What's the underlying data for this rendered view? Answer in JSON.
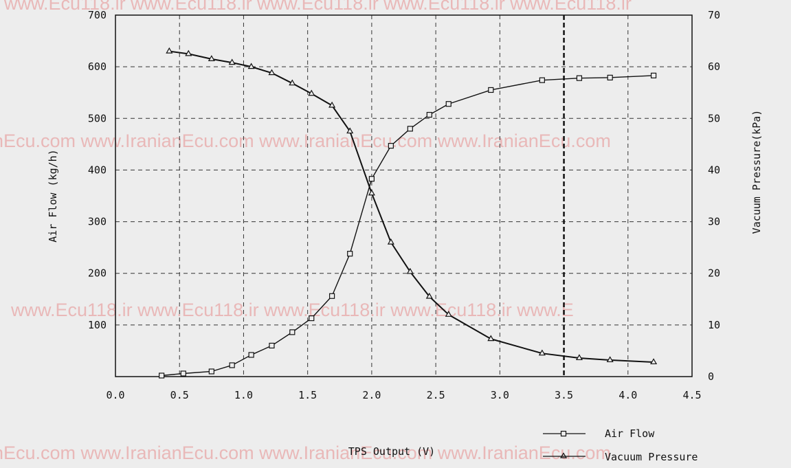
{
  "watermarks": {
    "row1": "www.Ecu118.ir   www.Ecu118.ir   www.Ecu118.ir   www.Ecu118.ir   www.Ecu118.ir",
    "row2": "nEcu.com   www.IranianEcu.com   www.IranianEcu.com   www.IranianEcu.com",
    "row3": "www.Ecu118.ir   www.Ecu118.ir   www.Ecu118.ir   www.Ecu118.ir   www.E",
    "row4": "nEcu.com   www.IranianEcu.com   www.IranianEcu.com   www.IranianEcu.com"
  },
  "chart_data": {
    "type": "line",
    "title": "",
    "xlabel": "TPS Output (V)",
    "ylabel": "Air Flow (kg/h)",
    "y2label": "Vacuum Pressure(kPa)",
    "xlim": [
      0,
      4.5
    ],
    "ylim": [
      0,
      700
    ],
    "y2lim": [
      0,
      70
    ],
    "grid": true,
    "legend_position": "bottom-right",
    "x_ticks": [
      "0.0",
      "0.5",
      "1.0",
      "1.5",
      "2.0",
      "2.5",
      "3.0",
      "3.5",
      "4.0",
      "4.5"
    ],
    "y_ticks": [
      "700",
      "600",
      "500",
      "400",
      "300",
      "200",
      "100"
    ],
    "y2_ticks": [
      "70",
      "60",
      "50",
      "40",
      "30",
      "20",
      "10",
      "0"
    ],
    "reference_line_x": 3.5,
    "series": [
      {
        "name": "Air Flow",
        "axis": "left",
        "marker": "square",
        "points": [
          [
            0.36,
            2
          ],
          [
            0.53,
            6
          ],
          [
            0.75,
            10
          ],
          [
            0.91,
            22
          ],
          [
            1.06,
            42
          ],
          [
            1.22,
            60
          ],
          [
            1.38,
            86
          ],
          [
            1.53,
            113
          ],
          [
            1.69,
            156
          ],
          [
            1.83,
            238
          ],
          [
            2.0,
            383
          ],
          [
            2.15,
            447
          ],
          [
            2.3,
            480
          ],
          [
            2.45,
            507
          ],
          [
            2.6,
            528
          ],
          [
            2.93,
            555
          ],
          [
            3.33,
            574
          ],
          [
            3.62,
            578
          ],
          [
            3.86,
            579
          ],
          [
            4.2,
            583
          ]
        ]
      },
      {
        "name": "Vacuum Pressure",
        "axis": "right",
        "marker": "triangle",
        "points": [
          [
            0.42,
            63
          ],
          [
            0.57,
            62.5
          ],
          [
            0.75,
            61.5
          ],
          [
            0.91,
            60.8
          ],
          [
            1.06,
            60
          ],
          [
            1.22,
            58.8
          ],
          [
            1.38,
            56.8
          ],
          [
            1.53,
            54.8
          ],
          [
            1.69,
            52.5
          ],
          [
            1.83,
            47.5
          ],
          [
            2.0,
            35.5
          ],
          [
            2.15,
            26
          ],
          [
            2.3,
            20.3
          ],
          [
            2.45,
            15.5
          ],
          [
            2.6,
            12
          ],
          [
            2.93,
            7.3
          ],
          [
            3.33,
            4.5
          ],
          [
            3.62,
            3.6
          ],
          [
            3.86,
            3.2
          ],
          [
            4.2,
            2.8
          ]
        ]
      }
    ]
  }
}
